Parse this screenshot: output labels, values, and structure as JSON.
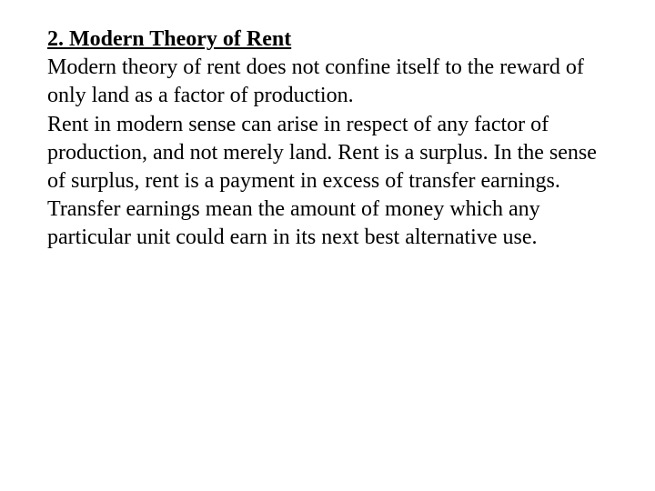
{
  "document": {
    "heading": "2. Modern Theory of Rent",
    "paragraph1": " Modern theory of rent does not confine itself to the reward of only land as a factor of production.",
    "paragraph2": "Rent in modern sense can arise in respect of any factor of production, and not merely land. Rent is a surplus. In the sense of surplus, rent is a payment in excess of transfer earnings.",
    "paragraph3": "Transfer earnings mean the amount of money which any particular unit could earn in its next best alternative use."
  },
  "styling": {
    "background_color": "#ffffff",
    "text_color": "#000000",
    "font_family": "Times New Roman",
    "heading_fontsize": 24,
    "body_fontsize": 24,
    "heading_weight": "bold",
    "heading_decoration": "underline",
    "line_height": 1.3
  }
}
